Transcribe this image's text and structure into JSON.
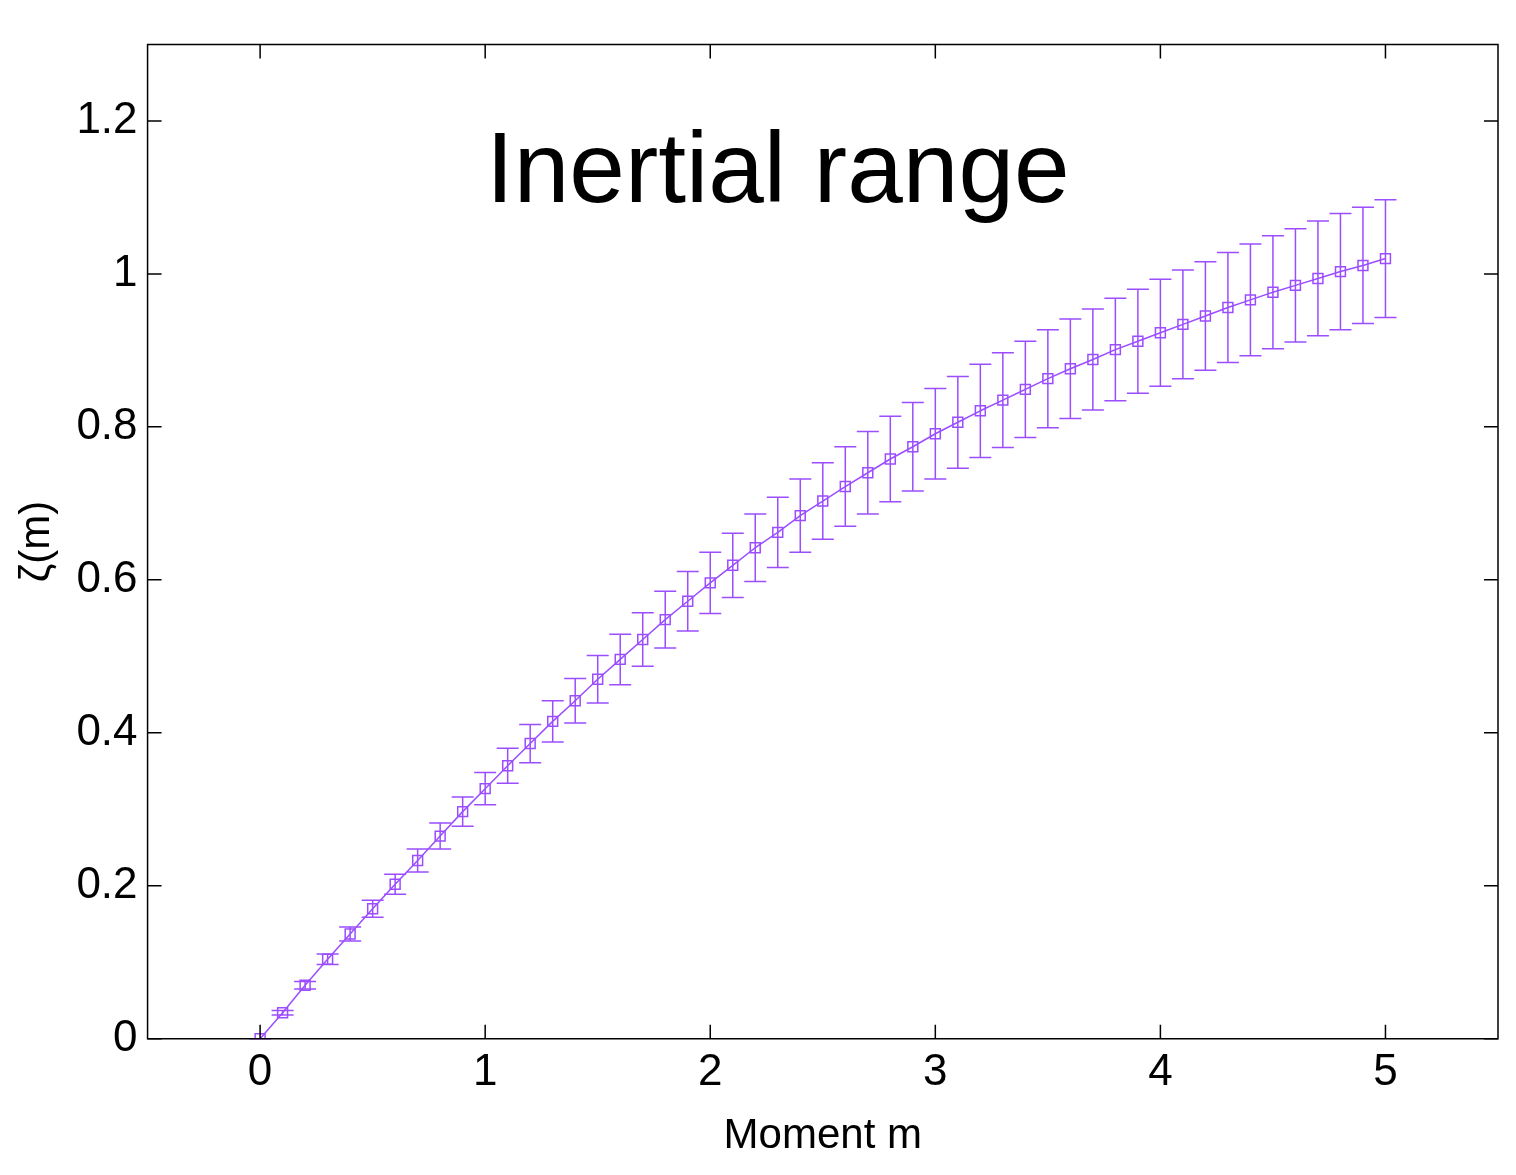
{
  "chart_data": {
    "type": "line",
    "title": "Inertial range",
    "xlabel": "Moment m",
    "ylabel": "ζ(m)",
    "x": [
      0,
      0.1,
      0.2,
      0.3,
      0.4,
      0.5,
      0.6,
      0.7,
      0.8,
      0.9,
      1,
      1.1,
      1.2,
      1.3,
      1.4,
      1.5,
      1.6,
      1.7,
      1.8,
      1.9,
      2,
      2.1,
      2.2,
      2.3,
      2.4,
      2.5,
      2.6,
      2.7,
      2.8,
      2.9,
      3,
      3.1,
      3.2,
      3.3,
      3.4,
      3.5,
      3.6,
      3.7,
      3.8,
      3.9,
      4,
      4.1,
      4.2,
      4.3,
      4.4,
      4.5,
      4.6,
      4.7,
      4.8,
      4.9,
      5
    ],
    "series": [
      {
        "color": "#9b4dff",
        "values": [
          0,
          0.034,
          0.07,
          0.104,
          0.137,
          0.17,
          0.202,
          0.233,
          0.265,
          0.297,
          0.327,
          0.357,
          0.386,
          0.415,
          0.442,
          0.47,
          0.496,
          0.522,
          0.548,
          0.572,
          0.596,
          0.619,
          0.642,
          0.662,
          0.684,
          0.703,
          0.722,
          0.74,
          0.758,
          0.774,
          0.791,
          0.806,
          0.821,
          0.835,
          0.849,
          0.863,
          0.876,
          0.888,
          0.901,
          0.912,
          0.923,
          0.934,
          0.945,
          0.956,
          0.966,
          0.976,
          0.985,
          0.994,
          1.003,
          1.011,
          1.02
        ],
        "errors": [
          0,
          0.003,
          0.005,
          0.007,
          0.009,
          0.011,
          0.013,
          0.015,
          0.017,
          0.019,
          0.021,
          0.023,
          0.025,
          0.027,
          0.029,
          0.031,
          0.033,
          0.035,
          0.037,
          0.039,
          0.04,
          0.042,
          0.044,
          0.046,
          0.048,
          0.05,
          0.052,
          0.054,
          0.056,
          0.058,
          0.059,
          0.06,
          0.061,
          0.062,
          0.063,
          0.064,
          0.065,
          0.066,
          0.067,
          0.068,
          0.07,
          0.071,
          0.071,
          0.072,
          0.073,
          0.074,
          0.074,
          0.075,
          0.076,
          0.076,
          0.077
        ]
      }
    ],
    "xlim": [
      -0.5,
      5.5
    ],
    "ylim": [
      0,
      1.3
    ],
    "xticks": [
      0,
      1,
      2,
      3,
      4,
      5
    ],
    "yticks": [
      0,
      0.2,
      0.4,
      0.6,
      0.8,
      1,
      1.2
    ],
    "grid": false,
    "legend": false,
    "marker": "square",
    "line_style": "solid"
  }
}
